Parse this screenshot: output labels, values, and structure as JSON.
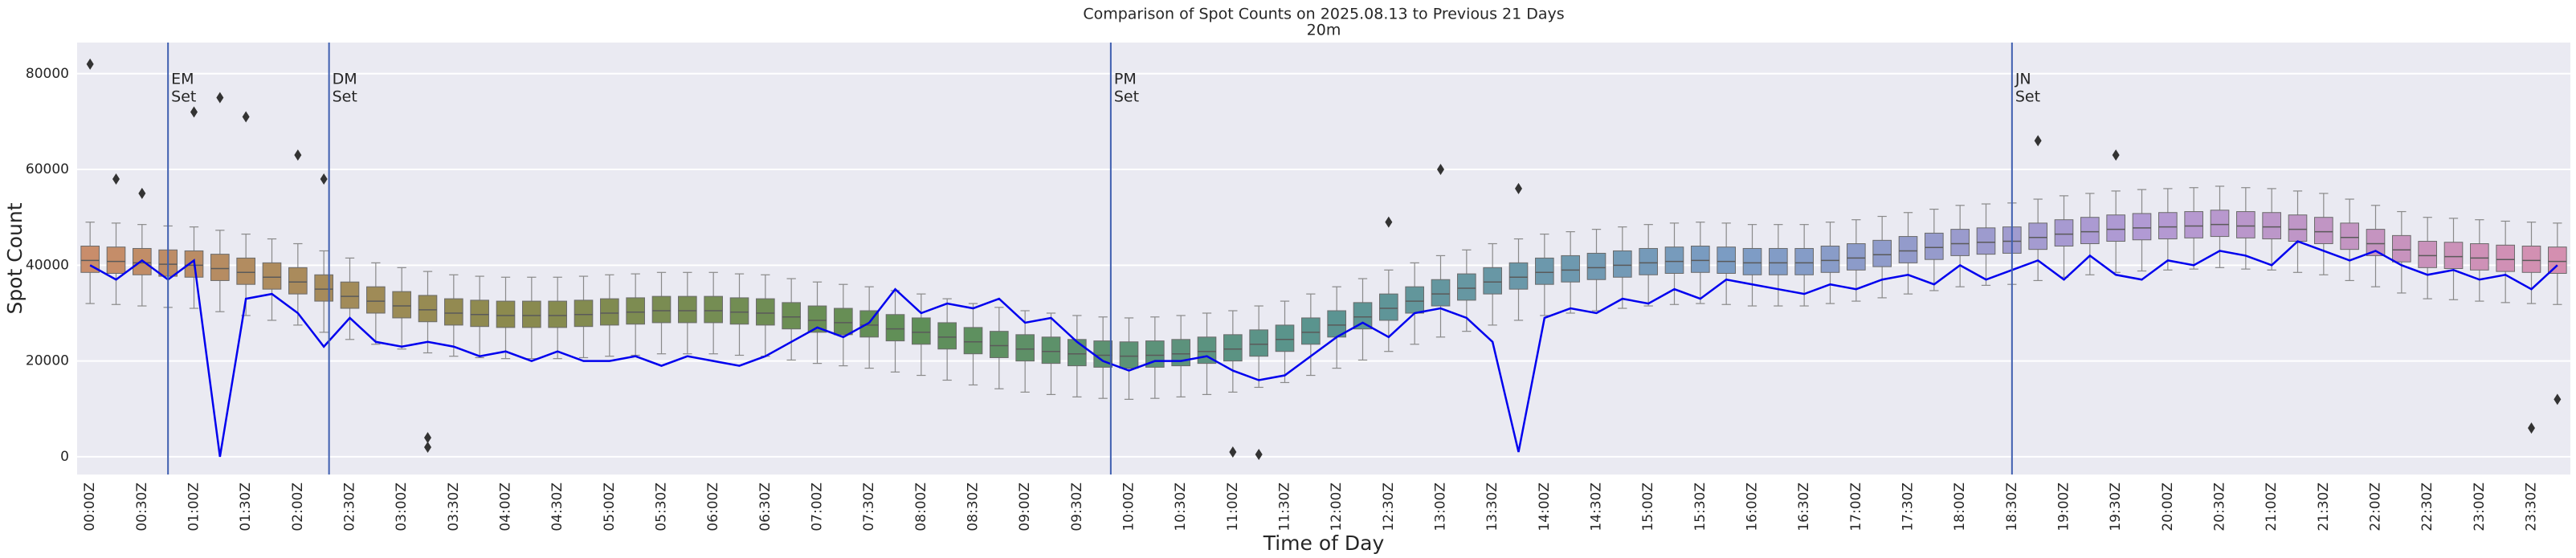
{
  "chart_data": {
    "type": "box",
    "title": "Comparison of Spot Counts on 2025.08.13 to Previous 21 Days",
    "subtitle": "20m",
    "x_label": "Time of Day",
    "y_label": "Spot Count",
    "categories": [
      "00:00Z",
      null,
      "00:30Z",
      null,
      "01:00Z",
      null,
      "01:30Z",
      null,
      "02:00Z",
      null,
      "02:30Z",
      null,
      "03:00Z",
      null,
      "03:30Z",
      null,
      "04:00Z",
      null,
      "04:30Z",
      null,
      "05:00Z",
      null,
      "05:30Z",
      null,
      "06:00Z",
      null,
      "06:30Z",
      null,
      "07:00Z",
      null,
      "07:30Z",
      null,
      "08:00Z",
      null,
      "08:30Z",
      null,
      "09:00Z",
      null,
      "09:30Z",
      null,
      "10:00Z",
      null,
      "10:30Z",
      null,
      "11:00Z",
      null,
      "11:30Z",
      null,
      "12:00Z",
      null,
      "12:30Z",
      null,
      "13:00Z",
      null,
      "13:30Z",
      null,
      "14:00Z",
      null,
      "14:30Z",
      null,
      "15:00Z",
      null,
      "15:30Z",
      null,
      "16:00Z",
      null,
      "16:30Z",
      null,
      "17:00Z",
      null,
      "17:30Z",
      null,
      "18:00Z",
      null,
      "18:30Z",
      null,
      "19:00Z",
      null,
      "19:30Z",
      null,
      "20:00Z",
      null,
      "20:30Z",
      null,
      "21:00Z",
      null,
      "21:30Z",
      null,
      "22:00Z",
      null,
      "22:30Z",
      null,
      "23:00Z",
      null,
      "23:30Z",
      null
    ],
    "boxes": {
      "whislo": [
        32000,
        31800,
        31500,
        31200,
        31000,
        30300,
        29500,
        28500,
        27500,
        26000,
        24500,
        23500,
        22500,
        21700,
        21000,
        20700,
        20500,
        20500,
        20500,
        20700,
        21000,
        21200,
        21500,
        21500,
        21500,
        21200,
        21000,
        20200,
        19500,
        19000,
        18500,
        17700,
        17000,
        16000,
        15000,
        14200,
        13500,
        13000,
        12500,
        12200,
        12000,
        12200,
        12500,
        13000,
        13500,
        14500,
        15500,
        17000,
        18500,
        20200,
        22000,
        23500,
        25000,
        26200,
        27500,
        28500,
        29500,
        30000,
        30500,
        31000,
        31500,
        31800,
        32000,
        31800,
        31500,
        31500,
        31500,
        32000,
        32500,
        33200,
        34000,
        34700,
        35500,
        35800,
        36000,
        36800,
        37500,
        38000,
        38500,
        38800,
        39000,
        39200,
        39500,
        39200,
        39000,
        38500,
        38000,
        36800,
        35500,
        34200,
        33000,
        32800,
        32500,
        32200,
        32000,
        31800
      ],
      "q1": [
        38500,
        38300,
        38000,
        37700,
        37500,
        36800,
        36000,
        35000,
        34000,
        32500,
        31000,
        30000,
        29000,
        28200,
        27500,
        27200,
        27000,
        27000,
        27000,
        27200,
        27500,
        27700,
        28000,
        28000,
        28000,
        27700,
        27500,
        26700,
        26000,
        25500,
        25000,
        24200,
        23500,
        22500,
        21500,
        20700,
        20000,
        19500,
        19000,
        18700,
        18500,
        18700,
        19000,
        19500,
        20000,
        21000,
        22000,
        23500,
        25000,
        26700,
        28500,
        30000,
        31500,
        32700,
        34000,
        35000,
        36000,
        36500,
        37000,
        37500,
        38000,
        38300,
        38500,
        38300,
        38000,
        38000,
        38000,
        38500,
        39000,
        39700,
        40500,
        41200,
        42000,
        42300,
        42500,
        43300,
        44000,
        44500,
        45000,
        45300,
        45500,
        45700,
        46000,
        45700,
        45500,
        45000,
        44500,
        43300,
        42000,
        40700,
        39500,
        39300,
        39000,
        38700,
        38500,
        38300
      ],
      "median": [
        41000,
        40800,
        40500,
        40200,
        40000,
        39300,
        38500,
        37500,
        36500,
        35000,
        33500,
        32500,
        31500,
        30700,
        30000,
        29700,
        29500,
        29500,
        29500,
        29700,
        30000,
        30200,
        30500,
        30500,
        30500,
        30200,
        30000,
        29200,
        28500,
        28000,
        27500,
        26700,
        26000,
        25000,
        24000,
        23200,
        22500,
        22000,
        21500,
        21200,
        21000,
        21200,
        21500,
        22000,
        22500,
        23500,
        24500,
        26000,
        27500,
        29200,
        31000,
        32500,
        34000,
        35200,
        36500,
        37500,
        38500,
        39000,
        39500,
        40000,
        40500,
        40800,
        41000,
        40800,
        40500,
        40500,
        40500,
        41000,
        41500,
        42200,
        43000,
        43700,
        44500,
        44800,
        45000,
        45800,
        46500,
        47000,
        47500,
        47800,
        48000,
        48200,
        48500,
        48200,
        48000,
        47500,
        47000,
        45800,
        44500,
        43200,
        42000,
        41800,
        41500,
        41200,
        41000,
        40800
      ],
      "q3": [
        44000,
        43800,
        43500,
        43200,
        43000,
        42300,
        41500,
        40500,
        39500,
        38000,
        36500,
        35500,
        34500,
        33700,
        33000,
        32700,
        32500,
        32500,
        32500,
        32700,
        33000,
        33200,
        33500,
        33500,
        33500,
        33200,
        33000,
        32200,
        31500,
        31000,
        30500,
        29700,
        29000,
        28000,
        27000,
        26200,
        25500,
        25000,
        24500,
        24200,
        24000,
        24200,
        24500,
        25000,
        25500,
        26500,
        27500,
        29000,
        30500,
        32200,
        34000,
        35500,
        37000,
        38200,
        39500,
        40500,
        41500,
        42000,
        42500,
        43000,
        43500,
        43800,
        44000,
        43800,
        43500,
        43500,
        43500,
        44000,
        44500,
        45200,
        46000,
        46700,
        47500,
        47800,
        48000,
        48800,
        49500,
        50000,
        50500,
        50800,
        51000,
        51200,
        51500,
        51200,
        51000,
        50500,
        50000,
        48800,
        47500,
        46200,
        45000,
        44800,
        44500,
        44200,
        44000,
        43800
      ],
      "whishi": [
        49000,
        48800,
        48500,
        48200,
        48000,
        47300,
        46500,
        45500,
        44500,
        43000,
        41500,
        40500,
        39500,
        38700,
        38000,
        37700,
        37500,
        37500,
        37500,
        37700,
        38000,
        38200,
        38500,
        38500,
        38500,
        38200,
        38000,
        37200,
        36500,
        36000,
        35500,
        34700,
        34000,
        33000,
        32000,
        31200,
        30500,
        30000,
        29500,
        29200,
        29000,
        29200,
        29500,
        30000,
        30500,
        31500,
        32500,
        34000,
        35500,
        37200,
        39000,
        40500,
        42000,
        43200,
        44500,
        45500,
        46500,
        47000,
        47500,
        48000,
        48500,
        48800,
        49000,
        48800,
        48500,
        48500,
        48500,
        49000,
        49500,
        50200,
        51000,
        51700,
        52500,
        52800,
        53000,
        53800,
        54500,
        55000,
        55500,
        55800,
        56000,
        56200,
        56500,
        56200,
        56000,
        55500,
        55000,
        53800,
        52500,
        51200,
        50000,
        49800,
        49500,
        49200,
        49000,
        48800
      ]
    },
    "palette": [
      "#c98d6b",
      "#8c8a4e",
      "#5f8f57",
      "#5a9490",
      "#7c9cc4",
      "#b29ad4",
      "#d48fb0"
    ],
    "outliers": {
      "x": [
        0,
        1,
        2,
        4,
        5,
        6,
        8,
        9,
        13,
        13,
        44,
        45,
        50,
        52,
        55,
        75,
        78,
        94,
        95
      ],
      "values": [
        82000,
        58000,
        55000,
        72000,
        75000,
        71000,
        63000,
        58000,
        4000,
        2000,
        1000,
        500,
        49000,
        60000,
        56000,
        66000,
        63000,
        6000,
        12000
      ],
      "color": "#333333"
    },
    "line": {
      "color": "#0000ee",
      "values": [
        40000,
        37000,
        41000,
        37000,
        41000,
        0,
        33000,
        34000,
        30000,
        23000,
        29000,
        24000,
        23000,
        24000,
        23000,
        21000,
        22000,
        20000,
        22000,
        20000,
        20000,
        21000,
        19000,
        21000,
        20000,
        19000,
        21000,
        24000,
        27000,
        25000,
        28000,
        35000,
        30000,
        32000,
        31000,
        33000,
        28000,
        29000,
        24000,
        20000,
        18000,
        20000,
        20000,
        21000,
        18000,
        16000,
        17000,
        21000,
        25000,
        28000,
        25000,
        30000,
        31000,
        29000,
        24000,
        1000,
        29000,
        31000,
        30000,
        33000,
        32000,
        35000,
        33000,
        37000,
        36000,
        35000,
        34000,
        36000,
        35000,
        37000,
        38000,
        36000,
        40000,
        37000,
        39000,
        41000,
        37000,
        42000,
        38000,
        37000,
        41000,
        40000,
        43000,
        42000,
        40000,
        45000,
        43000,
        41000,
        43000,
        40000,
        38000,
        39000,
        37000,
        38000,
        35000,
        40000
      ]
    },
    "annotations": [
      {
        "lines": [
          "EM",
          "Set"
        ],
        "x": 3
      },
      {
        "lines": [
          "DM",
          "Set"
        ],
        "x": 9.2
      },
      {
        "lines": [
          "PM",
          "Set"
        ],
        "x": 39.3
      },
      {
        "lines": [
          "JN",
          "Set"
        ],
        "x": 74
      }
    ],
    "annotation_color": "#3f5fb0",
    "ylim": [
      -3700,
      86500
    ],
    "yticks": [
      0,
      20000,
      40000,
      60000,
      80000
    ],
    "grid": true
  }
}
